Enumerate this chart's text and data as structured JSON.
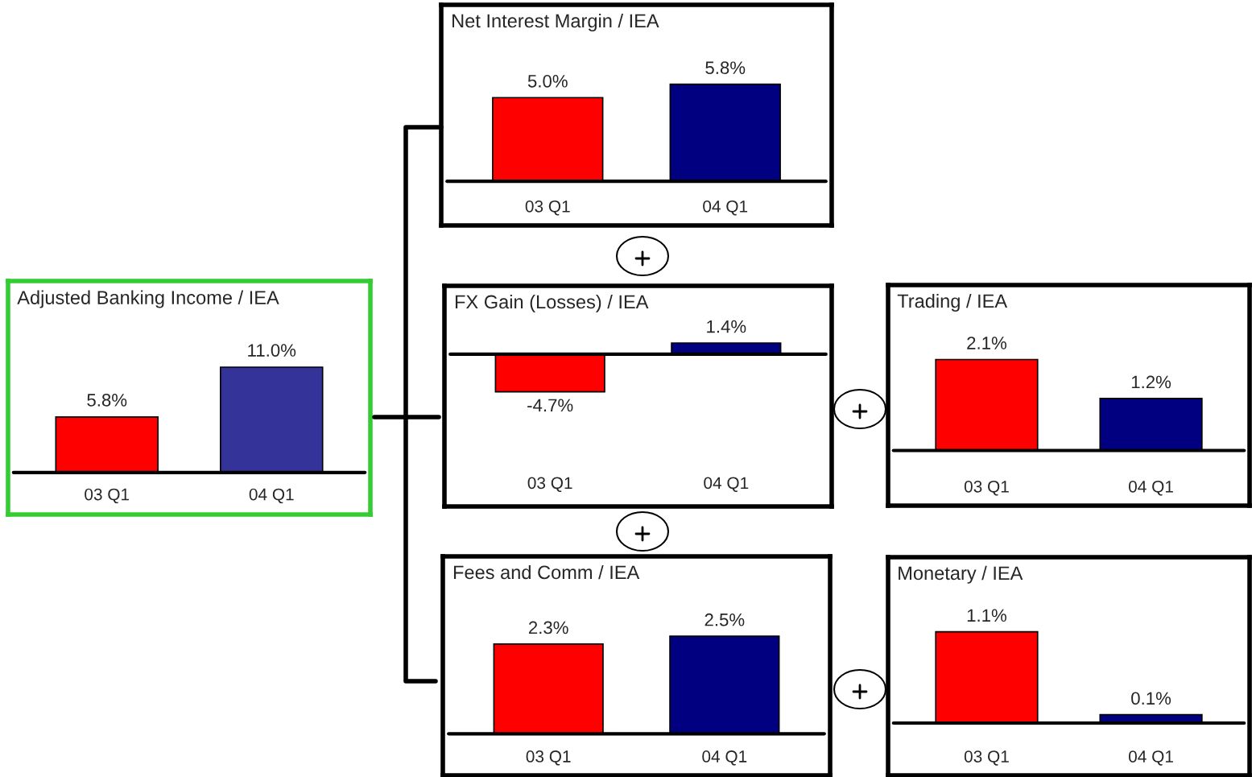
{
  "chart_data": [
    {
      "type": "bar",
      "title": "Adjusted Banking Income / IEA",
      "categories": [
        "03 Q1",
        "04 Q1"
      ],
      "values": [
        5.8,
        11.0
      ],
      "colors": [
        "#ff0000",
        "#333399"
      ],
      "value_labels": [
        "5.8%",
        "11.0%"
      ]
    },
    {
      "type": "bar",
      "title": "Net Interest Margin / IEA",
      "categories": [
        "03 Q1",
        "04 Q1"
      ],
      "values": [
        5.0,
        5.8
      ],
      "colors": [
        "#ff0000",
        "#000080"
      ],
      "value_labels": [
        "5.0%",
        "5.8%"
      ]
    },
    {
      "type": "bar",
      "title": "FX Gain (Losses) / IEA",
      "categories": [
        "03 Q1",
        "04 Q1"
      ],
      "values": [
        -4.7,
        1.4
      ],
      "colors": [
        "#ff0000",
        "#000080"
      ],
      "value_labels": [
        "-4.7%",
        "1.4%"
      ]
    },
    {
      "type": "bar",
      "title": "Fees and Comm / IEA",
      "categories": [
        "03 Q1",
        "04 Q1"
      ],
      "values": [
        2.3,
        2.5
      ],
      "colors": [
        "#ff0000",
        "#000080"
      ],
      "value_labels": [
        "2.3%",
        "2.5%"
      ]
    },
    {
      "type": "bar",
      "title": "Trading / IEA",
      "categories": [
        "03 Q1",
        "04 Q1"
      ],
      "values": [
        2.1,
        1.2
      ],
      "colors": [
        "#ff0000",
        "#000080"
      ],
      "value_labels": [
        "2.1%",
        "1.2%"
      ]
    },
    {
      "type": "bar",
      "title": "Monetary / IEA",
      "categories": [
        "03 Q1",
        "04 Q1"
      ],
      "values": [
        1.1,
        0.1
      ],
      "colors": [
        "#ff0000",
        "#000080"
      ],
      "value_labels": [
        "1.1%",
        "0.1%"
      ]
    }
  ]
}
